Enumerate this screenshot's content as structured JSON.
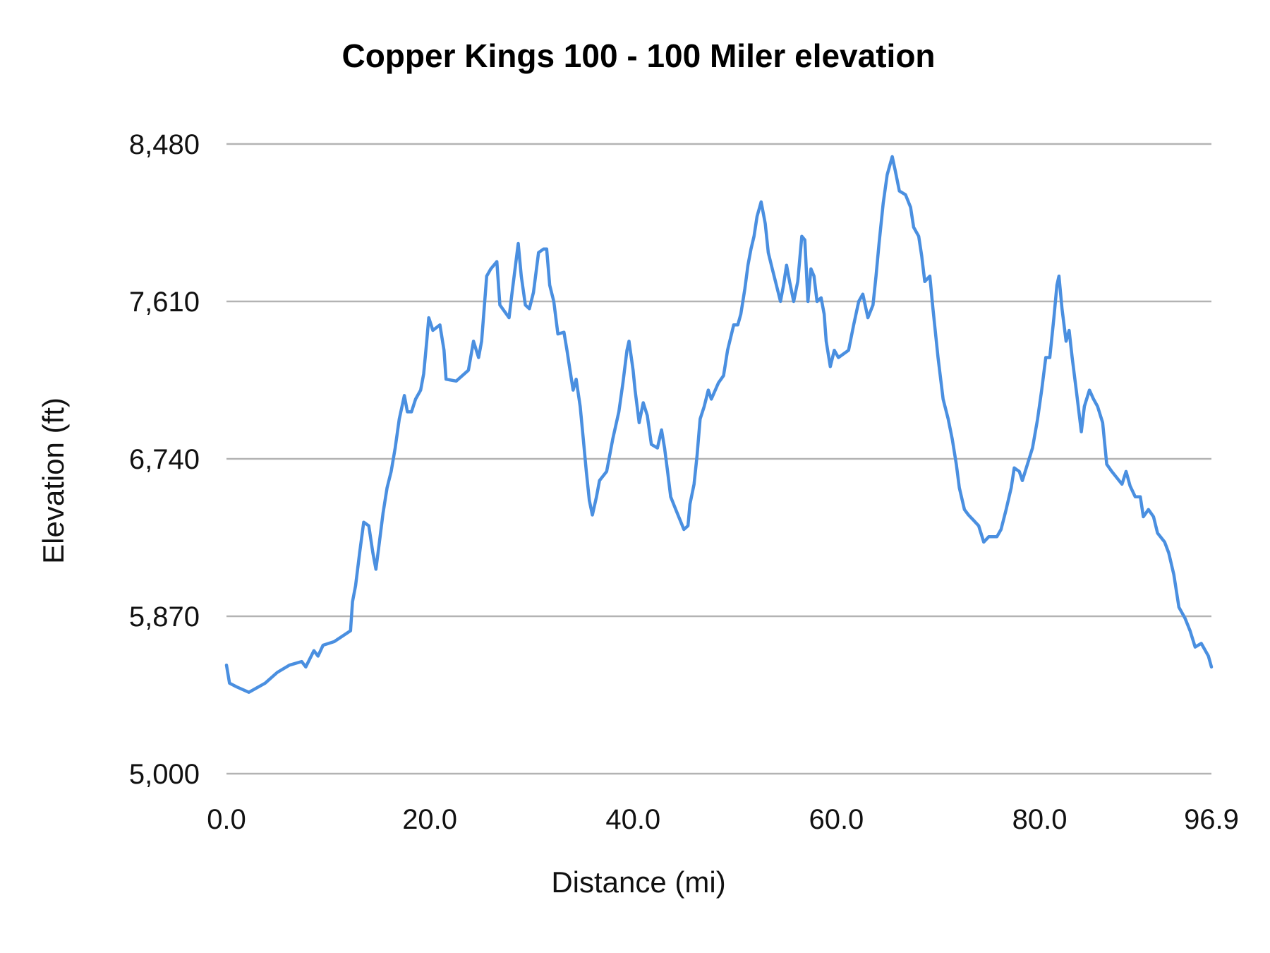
{
  "chart_data": {
    "type": "line",
    "title": "Copper Kings 100 - 100 Miler elevation",
    "xlabel": "Distance (mi)",
    "ylabel": "Elevation (ft)",
    "xlim": [
      0,
      96.9
    ],
    "ylim": [
      5000,
      8480
    ],
    "x_ticks": [
      "0.0",
      "20.0",
      "40.0",
      "60.0",
      "80.0",
      "96.9"
    ],
    "x_tick_values": [
      0,
      20,
      40,
      60,
      80,
      96.9
    ],
    "y_ticks": [
      "5,000",
      "5,870",
      "6,740",
      "7,610",
      "8,480"
    ],
    "y_tick_values": [
      5000,
      5870,
      6740,
      7610,
      8480
    ],
    "grid": "horizontal",
    "line_color": "#4a8fe0",
    "series": [
      {
        "x": [
          0,
          0.3,
          1.0,
          2.2,
          3.8,
          5.0,
          6.2,
          7.4,
          7.8,
          8.6,
          9.0,
          9.5,
          10.6,
          12.2,
          12.4,
          12.7,
          13.1,
          13.5,
          14.0,
          14.4,
          14.7,
          15.0,
          15.4,
          15.8,
          16.2,
          16.6,
          17.0,
          17.5,
          17.8,
          18.2,
          18.6,
          19.1,
          19.4,
          19.7,
          19.9,
          20.3,
          21.0,
          21.4,
          21.6,
          22.6,
          23.8,
          24.3,
          24.8,
          25.1,
          25.6,
          26.0,
          26.6,
          26.9,
          27.8,
          28.1,
          28.7,
          29.0,
          29.4,
          29.8,
          30.2,
          30.7,
          31.2,
          31.5,
          31.8,
          32.2,
          32.6,
          33.2,
          33.5,
          33.8,
          34.1,
          34.4,
          34.8,
          35.1,
          35.4,
          35.7,
          36.0,
          36.4,
          36.7,
          37.4,
          38.0,
          38.6,
          39.0,
          39.4,
          39.6,
          40.0,
          40.2,
          40.6,
          41.0,
          41.4,
          41.8,
          42.4,
          42.8,
          43.1,
          43.4,
          43.7,
          44.2,
          45.0,
          45.4,
          45.6,
          46.0,
          46.3,
          46.6,
          47.0,
          47.4,
          47.7,
          48.4,
          48.9,
          49.3,
          49.9,
          50.3,
          50.6,
          51.0,
          51.3,
          51.6,
          51.9,
          52.2,
          52.6,
          53.0,
          53.3,
          53.7,
          54.1,
          54.5,
          54.8,
          55.1,
          55.4,
          55.8,
          56.2,
          56.6,
          56.9,
          57.2,
          57.5,
          57.8,
          58.1,
          58.5,
          58.8,
          59.0,
          59.4,
          59.8,
          60.2,
          61.2,
          61.7,
          62.2,
          62.6,
          63.1,
          63.6,
          63.9,
          64.2,
          64.6,
          65.0,
          65.5,
          65.8,
          66.2,
          66.8,
          67.3,
          67.6,
          68.1,
          68.4,
          68.7,
          69.2,
          69.5,
          70.0,
          70.5,
          71.0,
          71.4,
          71.8,
          72.1,
          72.6,
          73.0,
          73.5,
          74.0,
          74.5,
          75.0,
          75.8,
          76.2,
          76.7,
          77.2,
          77.5,
          78.0,
          78.3,
          78.8,
          79.3,
          79.8,
          80.2,
          80.6,
          81.0,
          81.4,
          81.7,
          81.9,
          82.2,
          82.6,
          82.9,
          83.2,
          83.6,
          84.1,
          84.4,
          84.9,
          85.3,
          85.7,
          86.2,
          86.6,
          87.1,
          88.1,
          88.5,
          88.9,
          89.4,
          89.9,
          90.2,
          90.7,
          91.2,
          91.6,
          92.3,
          92.7,
          93.2,
          93.7,
          94.3,
          94.8,
          95.3,
          95.9,
          96.3,
          96.6,
          96.9
        ],
        "y": [
          5600,
          5500,
          5480,
          5450,
          5500,
          5560,
          5600,
          5620,
          5590,
          5680,
          5650,
          5710,
          5730,
          5790,
          5950,
          6040,
          6220,
          6390,
          6370,
          6220,
          6130,
          6260,
          6440,
          6580,
          6670,
          6800,
          6960,
          7090,
          7000,
          7000,
          7070,
          7120,
          7210,
          7390,
          7520,
          7450,
          7480,
          7340,
          7180,
          7170,
          7230,
          7390,
          7300,
          7390,
          7750,
          7790,
          7830,
          7590,
          7520,
          7660,
          7930,
          7750,
          7590,
          7570,
          7660,
          7880,
          7900,
          7900,
          7700,
          7610,
          7430,
          7440,
          7340,
          7230,
          7120,
          7180,
          7030,
          6850,
          6670,
          6510,
          6430,
          6530,
          6620,
          6670,
          6850,
          7000,
          7160,
          7340,
          7390,
          7230,
          7120,
          6940,
          7050,
          6980,
          6820,
          6800,
          6900,
          6800,
          6670,
          6530,
          6460,
          6350,
          6370,
          6490,
          6600,
          6760,
          6960,
          7030,
          7120,
          7070,
          7160,
          7200,
          7340,
          7480,
          7480,
          7540,
          7680,
          7810,
          7900,
          7970,
          8080,
          8160,
          8040,
          7880,
          7790,
          7700,
          7610,
          7700,
          7810,
          7720,
          7610,
          7720,
          7970,
          7950,
          7610,
          7790,
          7750,
          7610,
          7630,
          7540,
          7390,
          7250,
          7340,
          7300,
          7340,
          7480,
          7610,
          7650,
          7520,
          7590,
          7750,
          7930,
          8150,
          8310,
          8410,
          8330,
          8220,
          8200,
          8130,
          8020,
          7970,
          7860,
          7720,
          7750,
          7570,
          7300,
          7070,
          6960,
          6850,
          6710,
          6580,
          6460,
          6430,
          6400,
          6370,
          6280,
          6310,
          6310,
          6350,
          6460,
          6580,
          6690,
          6670,
          6620,
          6710,
          6800,
          6960,
          7120,
          7300,
          7300,
          7520,
          7700,
          7750,
          7570,
          7390,
          7450,
          7300,
          7120,
          6890,
          7030,
          7120,
          7070,
          7030,
          6940,
          6710,
          6670,
          6600,
          6670,
          6590,
          6530,
          6530,
          6420,
          6460,
          6420,
          6330,
          6280,
          6220,
          6100,
          5920,
          5860,
          5790,
          5700,
          5720,
          5680,
          5650,
          5590
        ]
      }
    ]
  }
}
